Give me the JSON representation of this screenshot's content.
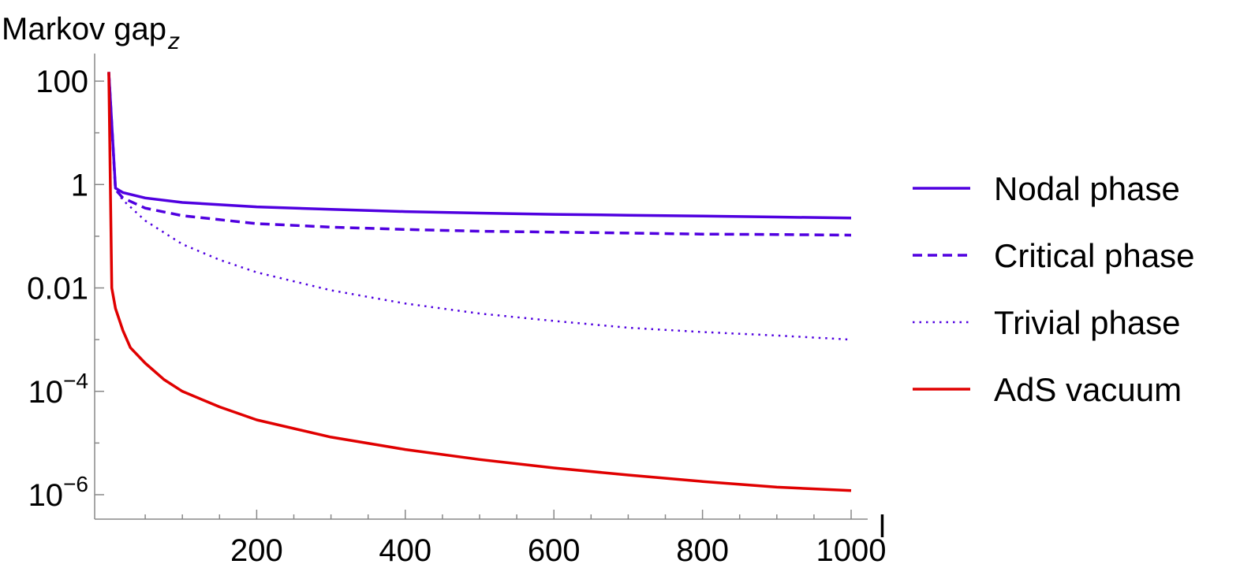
{
  "chart_data": {
    "type": "line",
    "ylabel_main": "Markov gap",
    "ylabel_sub": "z",
    "xlabel": "l",
    "y_scale": "log",
    "xlim": [
      0,
      1000
    ],
    "ylim_log10": [
      -6.5,
      2.5
    ],
    "x_ticks": [
      {
        "value": 200,
        "label": "200"
      },
      {
        "value": 400,
        "label": "400"
      },
      {
        "value": 600,
        "label": "600"
      },
      {
        "value": 800,
        "label": "800"
      },
      {
        "value": 1000,
        "label": "1000"
      }
    ],
    "y_ticks": [
      {
        "log": 2,
        "base": "100",
        "exp": ""
      },
      {
        "log": 0,
        "base": "1",
        "exp": ""
      },
      {
        "log": -2,
        "base": "0.01",
        "exp": ""
      },
      {
        "log": -4,
        "base": "10",
        "exp": "−4"
      },
      {
        "log": -6,
        "base": "10",
        "exp": "−6"
      }
    ],
    "grid": false,
    "legend_position": "right",
    "series": [
      {
        "name": "Nodal phase",
        "color": "#5000e0",
        "dash": "solid",
        "x": [
          1,
          10,
          20,
          50,
          100,
          200,
          300,
          400,
          500,
          600,
          700,
          800,
          900,
          1000
        ],
        "y": [
          150,
          0.85,
          0.7,
          0.55,
          0.45,
          0.37,
          0.33,
          0.3,
          0.28,
          0.265,
          0.255,
          0.245,
          0.235,
          0.225
        ]
      },
      {
        "name": "Critical phase",
        "color": "#5000e0",
        "dash": "dashed",
        "x": [
          1,
          10,
          20,
          50,
          100,
          200,
          300,
          400,
          500,
          600,
          700,
          800,
          900,
          1000
        ],
        "y": [
          150,
          0.8,
          0.55,
          0.35,
          0.25,
          0.175,
          0.15,
          0.135,
          0.125,
          0.12,
          0.115,
          0.11,
          0.108,
          0.105
        ]
      },
      {
        "name": "Trivial phase",
        "color": "#5000e0",
        "dash": "dotted",
        "x": [
          1,
          10,
          20,
          50,
          100,
          150,
          200,
          300,
          400,
          500,
          600,
          700,
          800,
          900,
          1000
        ],
        "y": [
          150,
          0.8,
          0.5,
          0.2,
          0.07,
          0.035,
          0.02,
          0.009,
          0.005,
          0.0032,
          0.0023,
          0.0017,
          0.0014,
          0.0012,
          0.001
        ]
      },
      {
        "name": "AdS vacuum",
        "color": "#e00000",
        "dash": "solid",
        "x": [
          1,
          5,
          10,
          20,
          30,
          50,
          75,
          100,
          150,
          200,
          300,
          400,
          500,
          600,
          700,
          800,
          900,
          1000
        ],
        "y": [
          150,
          0.01,
          0.004,
          0.0015,
          0.0007,
          0.00035,
          0.00017,
          0.0001,
          5e-05,
          2.8e-05,
          1.3e-05,
          7.5e-06,
          4.8e-06,
          3.3e-06,
          2.4e-06,
          1.8e-06,
          1.4e-06,
          1.2e-06
        ]
      }
    ]
  }
}
